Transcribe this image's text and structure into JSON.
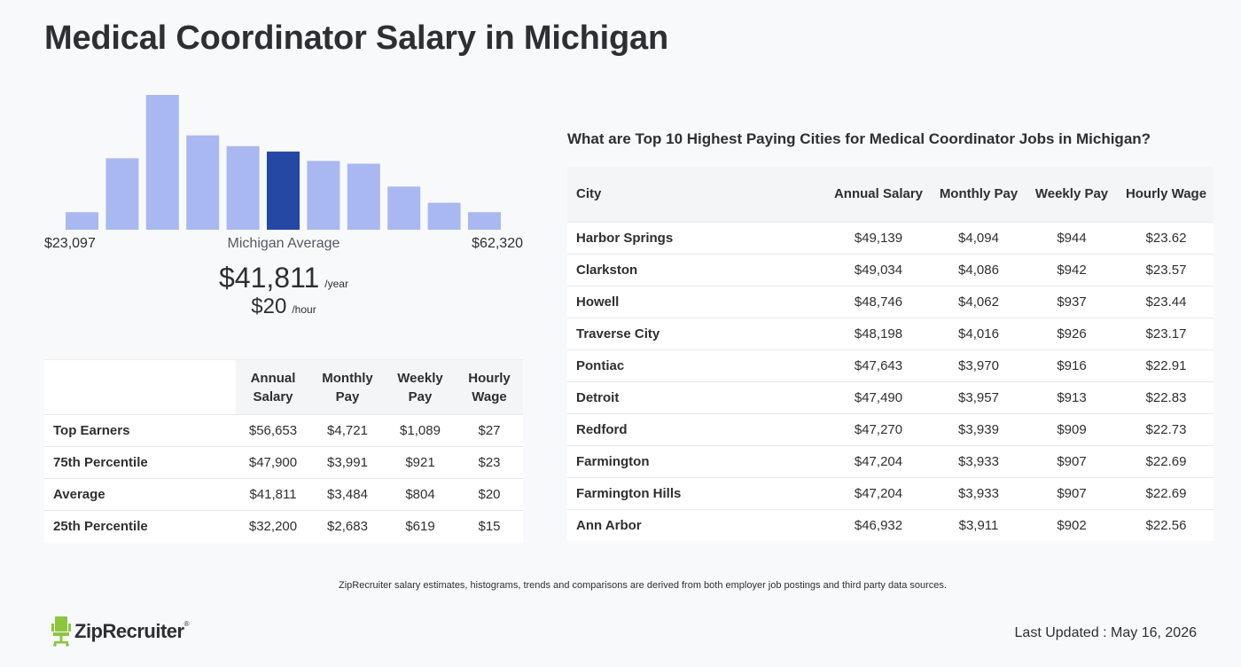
{
  "page": {
    "title": "Medical Coordinator Salary in Michigan"
  },
  "chart_data": {
    "type": "bar",
    "values": [
      13,
      53,
      100,
      70,
      62,
      58,
      51,
      49,
      32,
      20,
      13
    ],
    "highlight_index": 5,
    "colors": {
      "bar": "#a9b8f0",
      "highlight": "#2548a4"
    },
    "x_min_label": "$23,097",
    "x_max_label": "$62,320",
    "avg_label": "Michigan Average"
  },
  "summary": {
    "annual": "$41,811",
    "annual_unit": "/year",
    "hourly": "$20",
    "hourly_unit": "/hour"
  },
  "percentile_table": {
    "headers": [
      "Annual Salary",
      "Monthly Pay",
      "Weekly Pay",
      "Hourly Wage"
    ],
    "rows": [
      {
        "label": "Top Earners",
        "annual": "$56,653",
        "monthly": "$4,721",
        "weekly": "$1,089",
        "hourly": "$27"
      },
      {
        "label": "75th Percentile",
        "annual": "$47,900",
        "monthly": "$3,991",
        "weekly": "$921",
        "hourly": "$23"
      },
      {
        "label": "Average",
        "annual": "$41,811",
        "monthly": "$3,484",
        "weekly": "$804",
        "hourly": "$20"
      },
      {
        "label": "25th Percentile",
        "annual": "$32,200",
        "monthly": "$2,683",
        "weekly": "$619",
        "hourly": "$15"
      }
    ]
  },
  "cities": {
    "title": "What are Top 10 Highest Paying Cities for Medical Coordinator Jobs in Michigan?",
    "headers": [
      "City",
      "Annual Salary",
      "Monthly Pay",
      "Weekly Pay",
      "Hourly Wage"
    ],
    "rows": [
      {
        "city": "Harbor Springs",
        "annual": "$49,139",
        "monthly": "$4,094",
        "weekly": "$944",
        "hourly": "$23.62"
      },
      {
        "city": "Clarkston",
        "annual": "$49,034",
        "monthly": "$4,086",
        "weekly": "$942",
        "hourly": "$23.57"
      },
      {
        "city": "Howell",
        "annual": "$48,746",
        "monthly": "$4,062",
        "weekly": "$937",
        "hourly": "$23.44"
      },
      {
        "city": "Traverse City",
        "annual": "$48,198",
        "monthly": "$4,016",
        "weekly": "$926",
        "hourly": "$23.17"
      },
      {
        "city": "Pontiac",
        "annual": "$47,643",
        "monthly": "$3,970",
        "weekly": "$916",
        "hourly": "$22.91"
      },
      {
        "city": "Detroit",
        "annual": "$47,490",
        "monthly": "$3,957",
        "weekly": "$913",
        "hourly": "$22.83"
      },
      {
        "city": "Redford",
        "annual": "$47,270",
        "monthly": "$3,939",
        "weekly": "$909",
        "hourly": "$22.73"
      },
      {
        "city": "Farmington",
        "annual": "$47,204",
        "monthly": "$3,933",
        "weekly": "$907",
        "hourly": "$22.69"
      },
      {
        "city": "Farmington Hills",
        "annual": "$47,204",
        "monthly": "$3,933",
        "weekly": "$907",
        "hourly": "$22.69"
      },
      {
        "city": "Ann Arbor",
        "annual": "$46,932",
        "monthly": "$3,911",
        "weekly": "$902",
        "hourly": "$22.56"
      }
    ]
  },
  "footer": {
    "disclaimer": "ZipRecruiter salary estimates, histograms, trends and comparisons are derived from both employer job postings and third party data sources.",
    "logo_text": "ZipRecruiter",
    "logo_mark": "®",
    "logo_color": "#8cc63f",
    "last_updated": "Last Updated : May 16, 2026"
  }
}
